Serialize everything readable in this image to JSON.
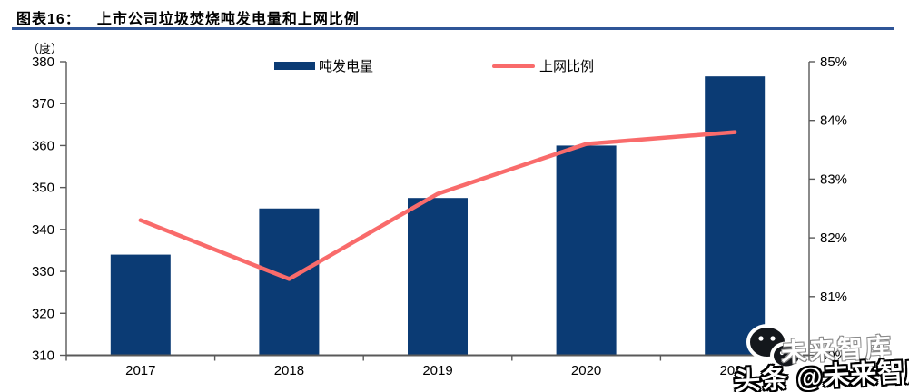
{
  "header": {
    "figure_label": "图表16：",
    "title": "上市公司垃圾焚烧吨发电量和上网比例"
  },
  "chart_data": {
    "type": "combo",
    "categories": [
      "2017",
      "2018",
      "2019",
      "2020",
      "2021"
    ],
    "series": [
      {
        "name": "吨发电量",
        "chart_type": "bar",
        "axis": "left",
        "unit": "度",
        "color": "#0B3B74",
        "values": [
          334,
          345,
          347.5,
          360,
          376.5
        ]
      },
      {
        "name": "上网比例",
        "chart_type": "line",
        "axis": "right",
        "unit": "%",
        "color": "#F96B6B",
        "values": [
          82.3,
          81.3,
          82.75,
          83.6,
          83.8
        ]
      }
    ],
    "left_axis": {
      "unit_label": "（度）",
      "min": 310,
      "max": 380,
      "tick_step": 10,
      "tick_labels": [
        "380",
        "370",
        "360",
        "350",
        "340",
        "330",
        "320",
        "310"
      ]
    },
    "right_axis": {
      "min": 80,
      "max": 85,
      "tick_step": 1,
      "tick_labels": [
        "85%",
        "84%",
        "83%",
        "82%",
        "81%",
        "80%"
      ]
    },
    "legend": {
      "position": "top",
      "entries": [
        "吨发电量",
        "上网比例"
      ]
    },
    "grid": false
  },
  "watermark": {
    "small_text": "未来智库",
    "main_text": "头条 @未来智库"
  },
  "colors": {
    "bar": "#0B3B74",
    "line": "#F96B6B",
    "title_underline": "#2F5597",
    "axis": "#595959"
  }
}
